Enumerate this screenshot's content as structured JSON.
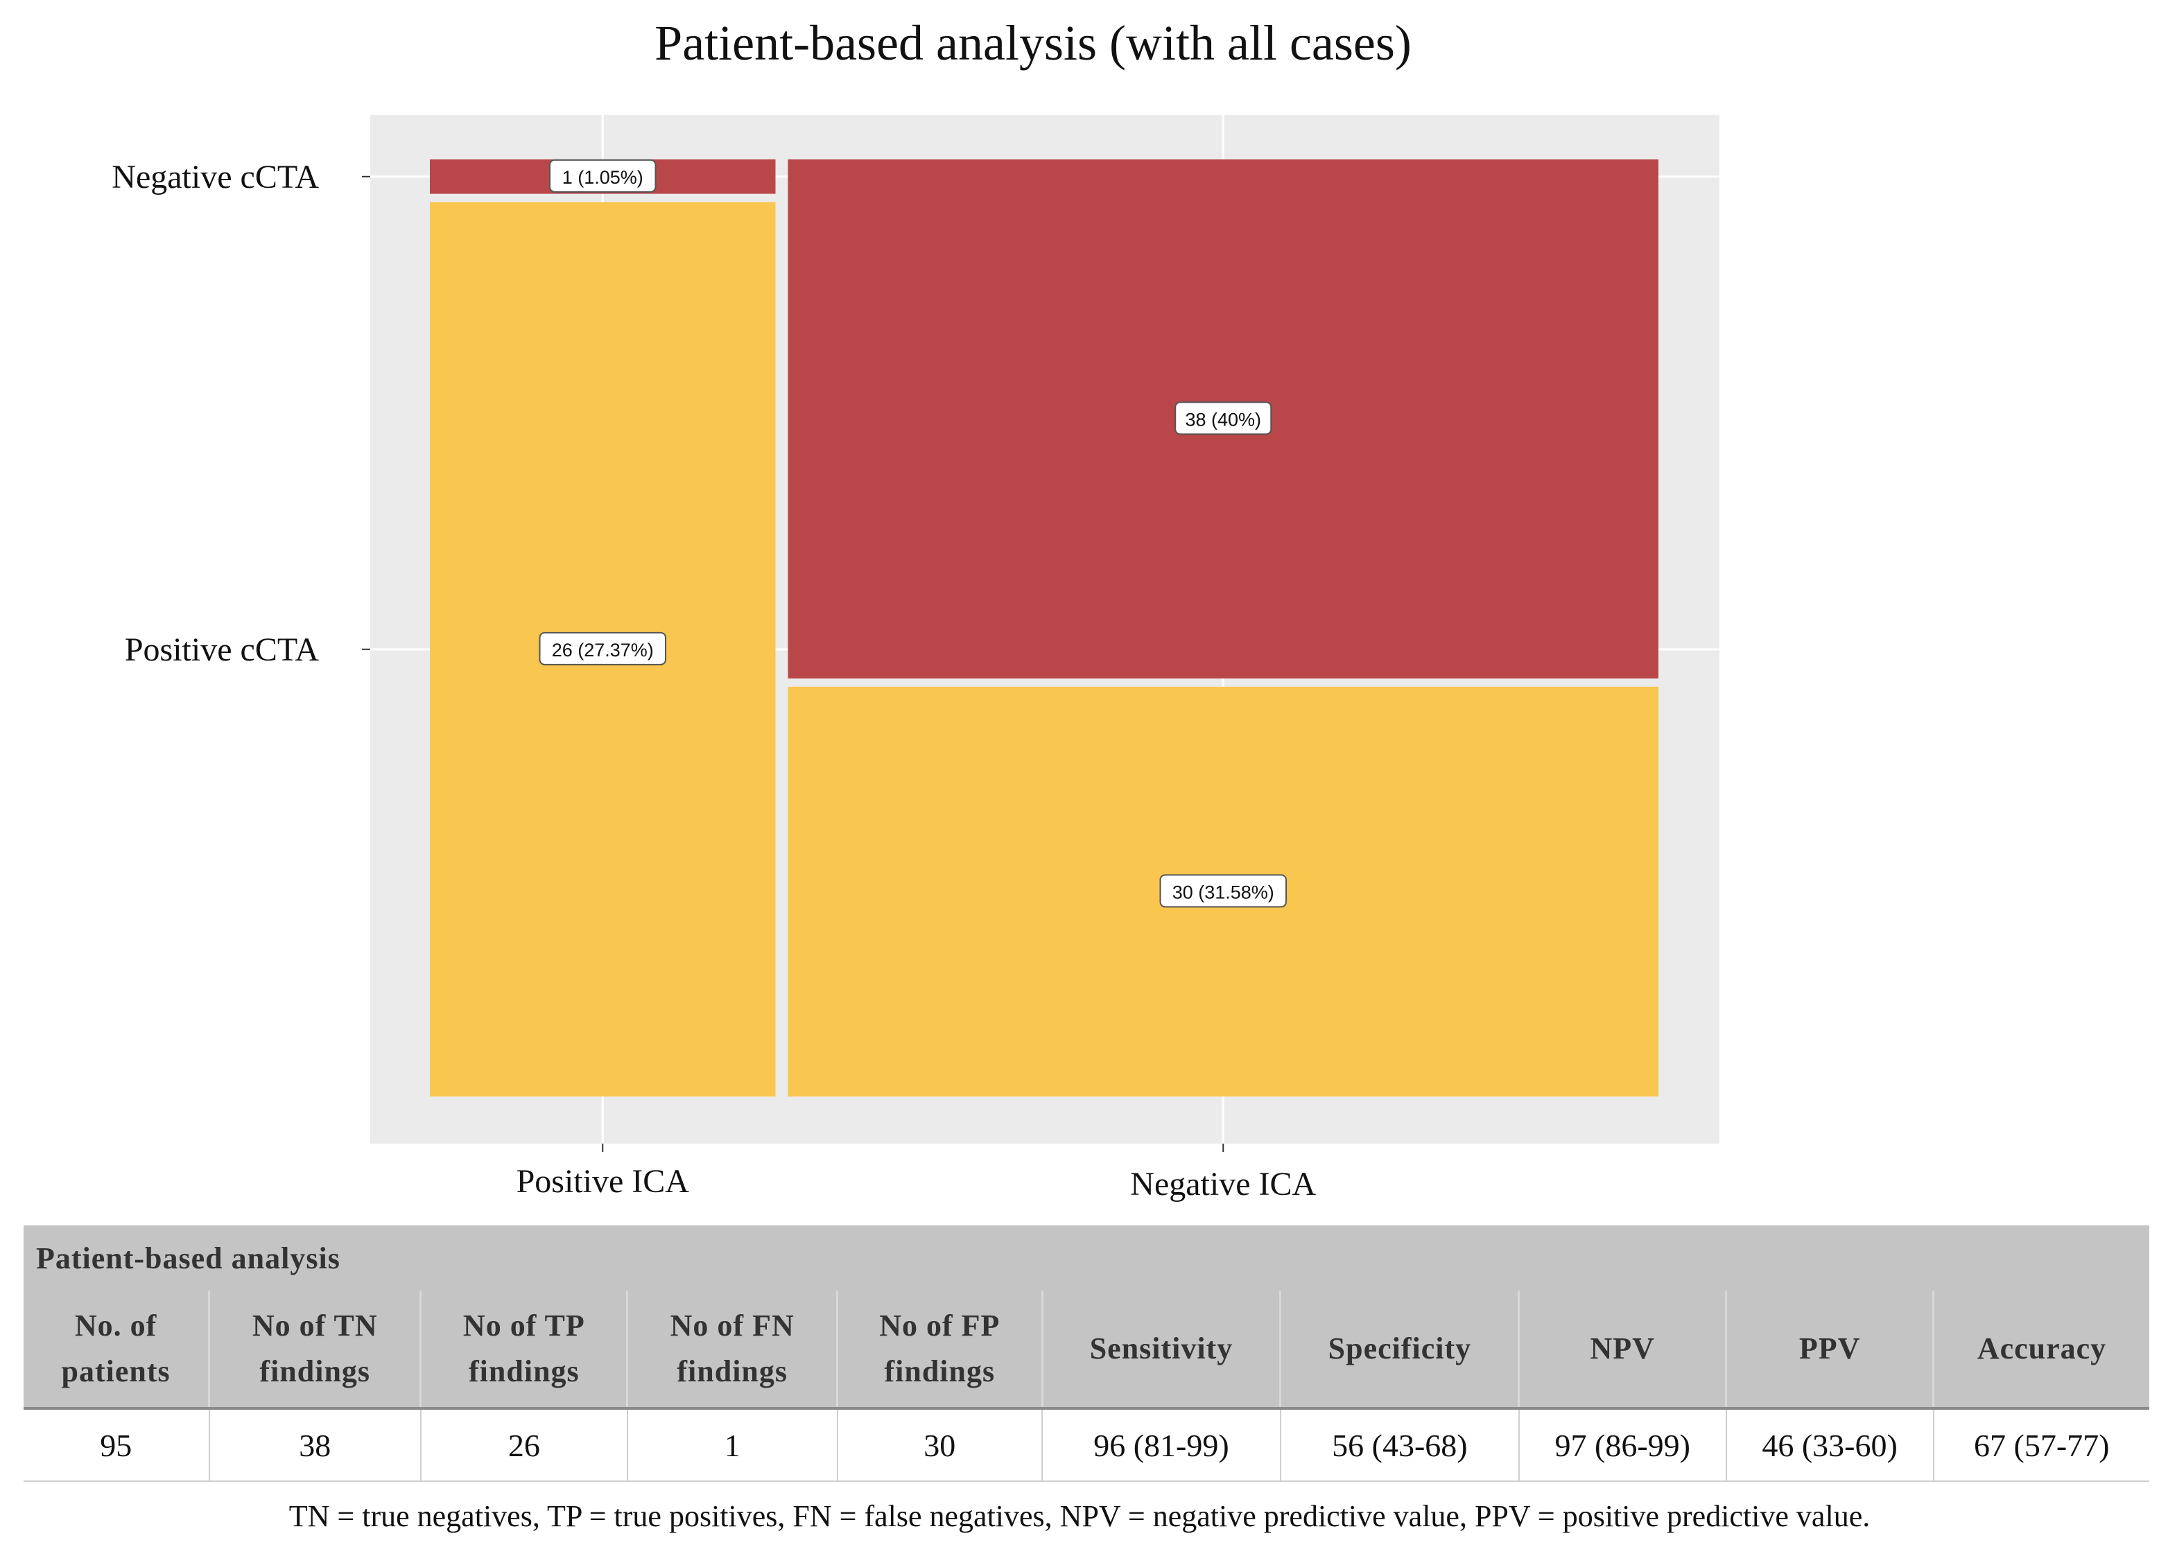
{
  "chart_data": {
    "type": "mosaic",
    "title": "Patient-based analysis (with all cases)",
    "x_categories": [
      "Positive ICA",
      "Negative ICA"
    ],
    "y_categories": [
      "Negative cCTA",
      "Positive cCTA"
    ],
    "total": 95,
    "cells": [
      {
        "x": "Positive ICA",
        "y": "Negative cCTA",
        "count": 1,
        "label": "1 (1.05%)",
        "color": "#b9474a"
      },
      {
        "x": "Positive ICA",
        "y": "Positive cCTA",
        "count": 26,
        "label": "26 (27.37%)",
        "color": "#f9c74f"
      },
      {
        "x": "Negative ICA",
        "y": "Negative cCTA",
        "count": 38,
        "label": "38 (40%)",
        "color": "#b9474a"
      },
      {
        "x": "Negative ICA",
        "y": "Positive cCTA",
        "count": 30,
        "label": "30 (31.58%)",
        "color": "#f9c74f"
      }
    ],
    "panel_background": "#ebebeb",
    "grid": true
  },
  "table": {
    "caption": "Patient-based analysis",
    "headers": [
      [
        "No. of",
        "patients"
      ],
      [
        "No of TN",
        "findings"
      ],
      [
        "No of TP",
        "findings"
      ],
      [
        "No of FN",
        "findings"
      ],
      [
        "No of FP",
        "findings"
      ],
      [
        "Sensitivity"
      ],
      [
        "Specificity"
      ],
      [
        "NPV"
      ],
      [
        "PPV"
      ],
      [
        "Accuracy"
      ]
    ],
    "values": [
      "95",
      "38",
      "26",
      "1",
      "30",
      "96 (81-99)",
      "56 (43-68)",
      "97 (86-99)",
      "46 (33-60)",
      "67 (57-77)"
    ]
  },
  "footnote": "TN = true negatives, TP = true positives, FN = false negatives, NPV = negative predictive value, PPV = positive predictive value."
}
